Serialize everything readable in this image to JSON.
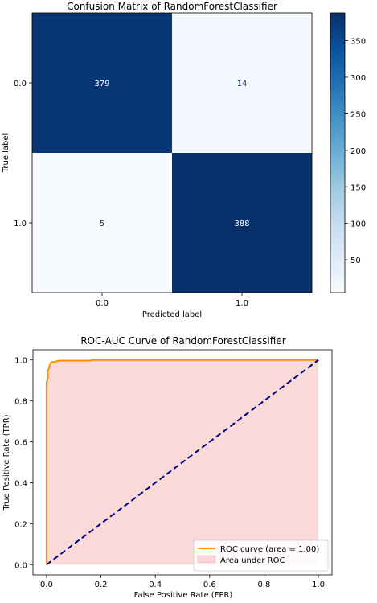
{
  "chart_data": [
    {
      "type": "heatmap",
      "title": "Confusion Matrix of RandomForestClassifier",
      "xlabel": "Predicted label",
      "ylabel": "True label",
      "x_categories": [
        "0.0",
        "1.0"
      ],
      "y_categories": [
        "0.0",
        "1.0"
      ],
      "values": [
        [
          379,
          14
        ],
        [
          5,
          388
        ]
      ],
      "colormap": "Blues",
      "colorbar": {
        "min": 5,
        "max": 388,
        "ticks": [
          "50",
          "100",
          "150",
          "200",
          "250",
          "300",
          "350"
        ]
      },
      "colors": {
        "high": "#08306b",
        "low": "#f7fbff",
        "text_on_dark": "#ffffff",
        "text_on_light": "#08306b"
      }
    },
    {
      "type": "line",
      "title": "ROC-AUC Curve of RandomForestClassifier",
      "xlabel": "False Positive Rate (FPR)",
      "ylabel": "True Positive Rate (TPR)",
      "xlim": [
        -0.05,
        1.05
      ],
      "ylim": [
        -0.05,
        1.05
      ],
      "xticks": [
        "0.0",
        "0.2",
        "0.4",
        "0.6",
        "0.8",
        "1.0"
      ],
      "yticks": [
        "0.0",
        "0.2",
        "0.4",
        "0.6",
        "0.8",
        "1.0"
      ],
      "series": [
        {
          "name": "ROC curve (area = 1.00)",
          "color": "#ff8c00",
          "x": [
            0,
            0,
            0.005,
            0.005,
            0.01,
            0.01,
            0.015,
            0.015,
            0.02,
            0.03,
            0.04,
            0.05,
            0.08,
            0.16,
            0.17,
            1.0
          ],
          "y": [
            0,
            0.89,
            0.91,
            0.95,
            0.96,
            0.97,
            0.98,
            0.985,
            0.99,
            0.99,
            0.995,
            0.997,
            0.997,
            0.997,
            1.0,
            1.0
          ]
        },
        {
          "name": "",
          "color": "#000080",
          "style": "dashed",
          "x": [
            0,
            1
          ],
          "y": [
            0,
            1
          ]
        }
      ],
      "fill": {
        "name": "Area under ROC",
        "color": "#f08080"
      },
      "legend_position": "lower right"
    }
  ]
}
